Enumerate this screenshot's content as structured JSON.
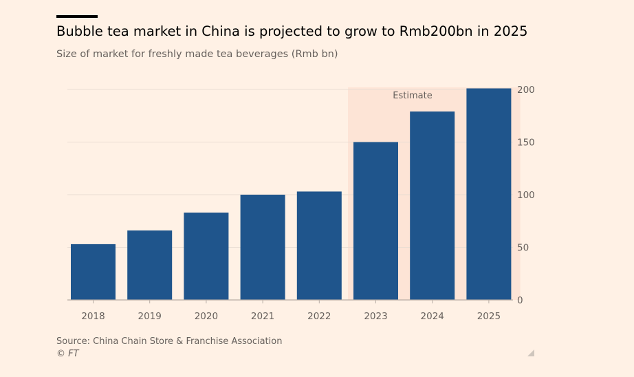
{
  "header": {
    "title": "Bubble tea market in China is projected to grow to Rmb200bn in 2025",
    "subtitle": "Size of market for freshly made tea beverages (Rmb bn)"
  },
  "footer": {
    "source": "Source: China Chain Store & Franchise Association",
    "credit": "© FT"
  },
  "colors": {
    "bar": "#1f558c",
    "estimate_band": "#fde4d6",
    "gridline": "#e9ddd3",
    "tick_text": "#66605c"
  },
  "chart_data": {
    "type": "bar",
    "categories": [
      "2018",
      "2019",
      "2020",
      "2021",
      "2022",
      "2023",
      "2024",
      "2025"
    ],
    "values": [
      53,
      66,
      83,
      100,
      103,
      150,
      179,
      201
    ],
    "ylim": [
      0,
      200
    ],
    "yticks": [
      0,
      50,
      100,
      150,
      200
    ],
    "yaxis_side": "right",
    "grid": true,
    "estimate": {
      "label": "Estimate",
      "from": "2023",
      "to": "2025"
    }
  }
}
